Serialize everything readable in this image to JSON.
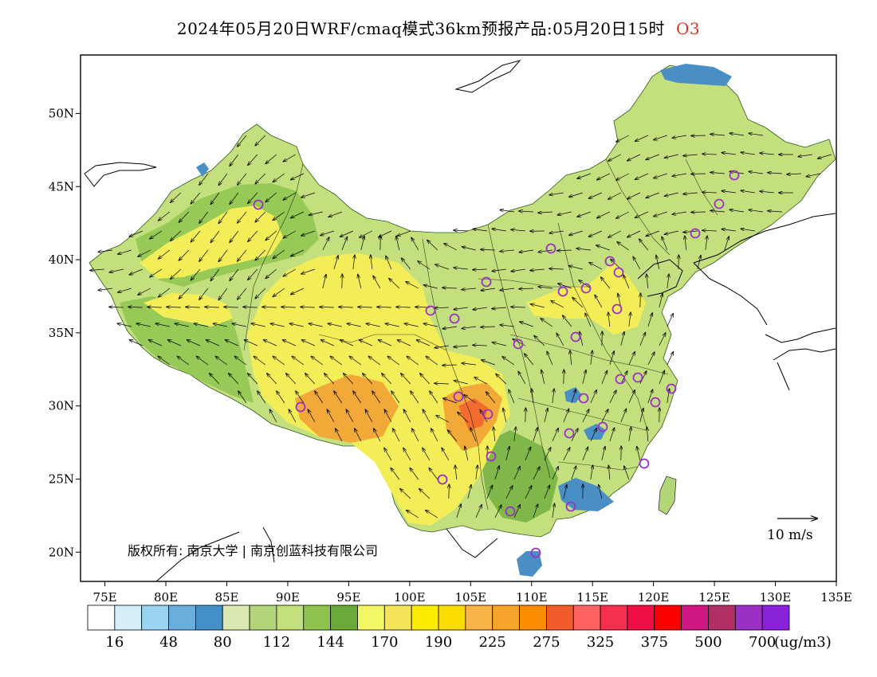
{
  "title": {
    "text": "2024年05月20日WRF/cmaq模式36km预报产品:05月20日15时",
    "pollutant": "O3",
    "pollutant_color": "#e0302a"
  },
  "map": {
    "lon_range": [
      73,
      135
    ],
    "lat_range": [
      18,
      54
    ],
    "x_ticks": [
      {
        "lon": 75,
        "label": "75E"
      },
      {
        "lon": 80,
        "label": "80E"
      },
      {
        "lon": 85,
        "label": "85E"
      },
      {
        "lon": 90,
        "label": "90E"
      },
      {
        "lon": 95,
        "label": "95E"
      },
      {
        "lon": 100,
        "label": "100E"
      },
      {
        "lon": 105,
        "label": "105E"
      },
      {
        "lon": 110,
        "label": "110E"
      },
      {
        "lon": 115,
        "label": "115E"
      },
      {
        "lon": 120,
        "label": "120E"
      },
      {
        "lon": 125,
        "label": "125E"
      },
      {
        "lon": 130,
        "label": "130E"
      },
      {
        "lon": 135,
        "label": "135E"
      }
    ],
    "y_ticks": [
      {
        "lat": 20,
        "label": "20N"
      },
      {
        "lat": 25,
        "label": "25N"
      },
      {
        "lat": 30,
        "label": "30N"
      },
      {
        "lat": 35,
        "label": "35N"
      },
      {
        "lat": 40,
        "label": "40N"
      },
      {
        "lat": 45,
        "label": "45N"
      },
      {
        "lat": 50,
        "label": "50N"
      }
    ],
    "copyright": "版权所有: 南京大学 | 南京创蓝科技有限公司",
    "wind_scale_label": "10 m/s",
    "colors": {
      "land_mid": "#c2de7c",
      "land_high": "#f3ee58",
      "land_peak": "#f2a938",
      "water": "#4a8ec6",
      "station": "#9b30c8"
    }
  },
  "legend": {
    "unit": "(ug/m3)",
    "colors": [
      "#ffffff",
      "#d4eefa",
      "#9ad4f0",
      "#6aaedc",
      "#4590c6",
      "#dbe8b2",
      "#b3d57a",
      "#c3e07c",
      "#8ec44e",
      "#6aaa3a",
      "#f3f766",
      "#f5e45a",
      "#fcec00",
      "#fbdc00",
      "#f9b448",
      "#f7a42a",
      "#fc8c00",
      "#f05c2c",
      "#ff6262",
      "#f52f4e",
      "#ef0f45",
      "#fb0000",
      "#d01680",
      "#b03064",
      "#9a30c4",
      "#8a22dc"
    ],
    "labels": [
      "16",
      "48",
      "80",
      "112",
      "144",
      "170",
      "190",
      "225",
      "275",
      "325",
      "375",
      "500",
      "700"
    ]
  }
}
